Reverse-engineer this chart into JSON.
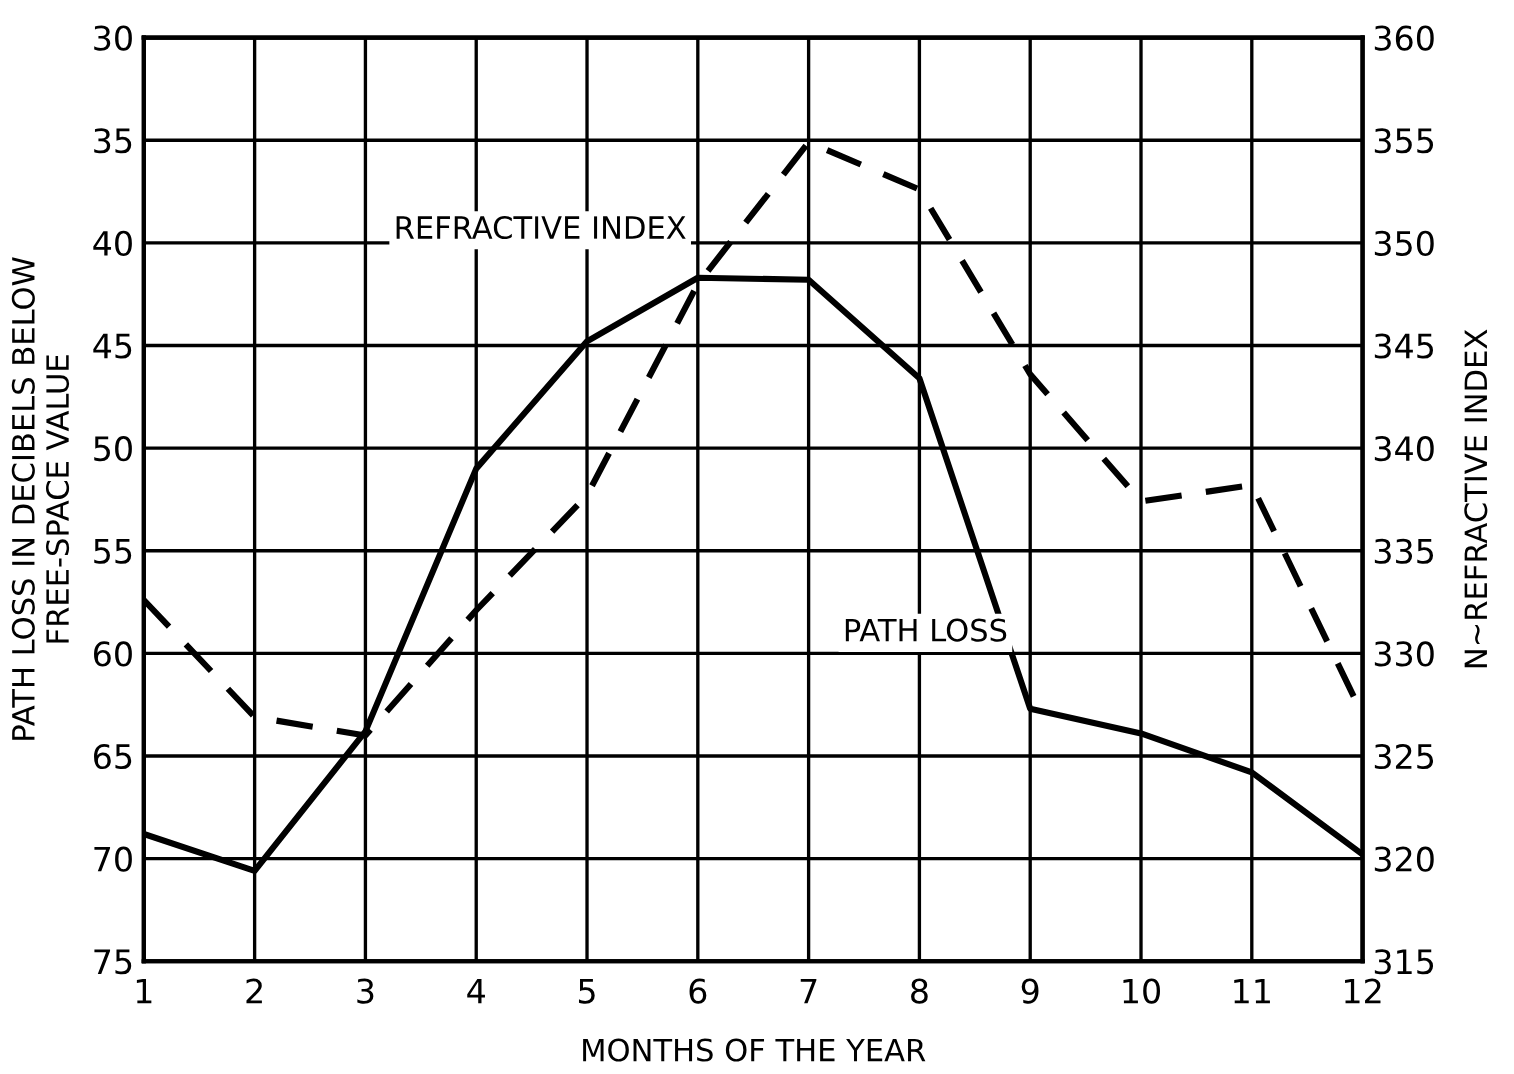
{
  "chart_data": {
    "type": "line",
    "xlabel": "MONTHS OF THE YEAR",
    "ylabel": "PATH LOSS IN DECIBELS BELOW\nFREE-SPACE VALUE",
    "y2label": "N~REFRACTIVE INDEX",
    "x": [
      1,
      2,
      3,
      4,
      5,
      6,
      7,
      8,
      9,
      10,
      11,
      12
    ],
    "xlim": [
      1,
      12
    ],
    "xticks": [
      1,
      2,
      3,
      4,
      5,
      6,
      7,
      8,
      9,
      10,
      11,
      12
    ],
    "ylim": [
      75,
      30
    ],
    "yticks": [
      30,
      35,
      40,
      45,
      50,
      55,
      60,
      65,
      70,
      75
    ],
    "y2lim": [
      315,
      360
    ],
    "y2ticks": [
      315,
      320,
      325,
      330,
      335,
      340,
      345,
      350,
      355,
      360
    ],
    "grid": true,
    "marker": "none",
    "series": [
      {
        "name": "PATH LOSS",
        "color": "#000000",
        "line_style": "solid",
        "values": [
          68.8,
          70.6,
          63.8,
          51.0,
          44.8,
          41.7,
          41.8,
          46.6,
          62.7,
          63.9,
          65.8,
          69.8
        ]
      },
      {
        "name": "REFRACTIVE INDEX",
        "color": "#000000",
        "line_style": "dashed",
        "axis": "y2",
        "values": [
          332.6,
          326.9,
          326.0,
          332.1,
          337.7,
          348.0,
          354.9,
          352.6,
          343.6,
          337.4,
          338.2,
          327.0
        ]
      }
    ]
  }
}
